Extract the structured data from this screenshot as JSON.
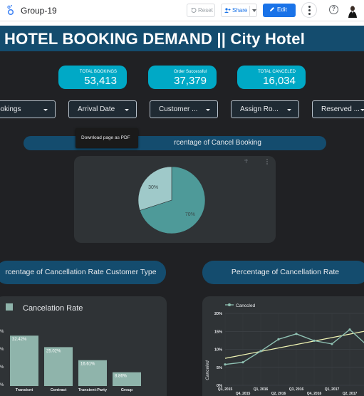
{
  "app": {
    "title": "Group-19",
    "reset_label": "Reset",
    "share_label": "Share",
    "edit_label": "Edit",
    "help_label": "?"
  },
  "report": {
    "heading": "HOTEL BOOKING DEMAND || City Hotel",
    "kpis": [
      {
        "label": "TOTAL BOOKINGS",
        "value": "53,413"
      },
      {
        "label": "Order Successful",
        "value": "37,379"
      },
      {
        "label": "TOTAL CANCELED",
        "value": "16,034"
      }
    ],
    "controls": [
      {
        "label": "ookings"
      },
      {
        "label": "Arrival Date"
      },
      {
        "label": "Customer ..."
      },
      {
        "label": "Assign Ro..."
      },
      {
        "label": "Reserved ..."
      }
    ],
    "pie_title": "rcentage of Cancel Booking",
    "tooltip": "Download page as PDF",
    "cust_type_title": "rcentage of Cancellation Rate Customer Type",
    "rate_title": "Percentage of Cancellation Rate"
  },
  "colors": {
    "accent": "#1a73e8",
    "kpi": "#00a9c6",
    "band": "#144c6e",
    "bar": "#8fb4ab",
    "pie_main": "#4e9a99",
    "pie_slice": "#9fc9c9",
    "line": "#8fc1b3",
    "trend": "#f2f7b5"
  },
  "chart_data": [
    {
      "type": "pie",
      "labels": [
        "70%",
        "30%"
      ],
      "values": [
        70,
        30
      ]
    },
    {
      "type": "bar",
      "series": [
        {
          "name": "Cancelation Rate",
          "values": [
            32.42,
            25.02,
            16.61,
            8.86
          ]
        }
      ],
      "categories": [
        "Transicnt",
        "Contract",
        "Transient-Party",
        "Group"
      ],
      "data_labels": [
        "32.42%",
        "25.02%",
        "16.61%",
        "8.86%"
      ],
      "y_ticks": [
        "%",
        "%",
        "%",
        "%"
      ],
      "ylim": [
        0,
        40
      ]
    },
    {
      "type": "line",
      "series": [
        {
          "name": "Canccled",
          "values": [
            5.8,
            6.4,
            9.5,
            12.8,
            14.3,
            12.4,
            11.5,
            15.5,
            11
          ]
        }
      ],
      "x_ticks_top": [
        "Q3, 2015",
        "Q1, 2016",
        "Q3, 2016",
        "Q1, 2017"
      ],
      "x_ticks_bottom": [
        "Q4, 2015",
        "Q2, 2016",
        "Q4, 2016",
        "Q2, 2017"
      ],
      "y_ticks": [
        "20%",
        "15%",
        "10%",
        "5%",
        "0%"
      ],
      "ylabel": "Canceled",
      "ylim": [
        0,
        20
      ],
      "trendline": [
        7.5,
        15.5
      ]
    }
  ]
}
